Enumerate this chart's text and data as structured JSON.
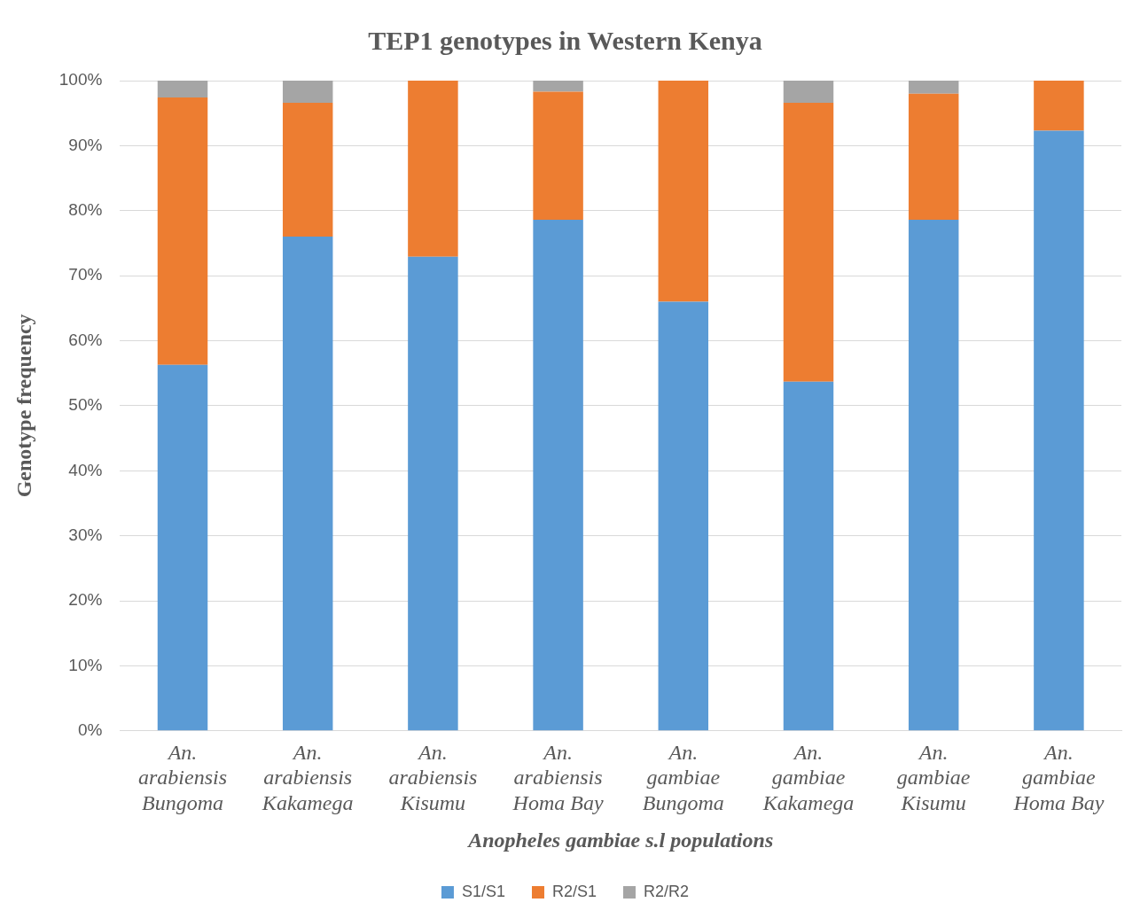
{
  "chart_data": {
    "type": "bar",
    "title": "TEP1 genotypes in Western Kenya",
    "xlabel": "Anopheles gambiae s.l populations",
    "ylabel": "Genotype frequency",
    "categories": [
      "An. arabiensis Bungoma",
      "An. arabiensis Kakamega",
      "An. arabiensis Kisumu",
      "An. arabiensis Homa Bay",
      "An. gambiae Bungoma",
      "An. gambiae Kakamega",
      "An. gambiae Kisumu",
      "An. gambiae Homa Bay"
    ],
    "series": [
      {
        "name": "S1/S1",
        "color": "#5b9bd5",
        "values": [
          56.3,
          76.0,
          72.9,
          78.6,
          66.0,
          53.7,
          78.6,
          92.3
        ]
      },
      {
        "name": "R2/S1",
        "color": "#ed7d31",
        "values": [
          41.1,
          20.6,
          27.1,
          19.7,
          34.0,
          42.9,
          19.4,
          7.7
        ]
      },
      {
        "name": "R2/R2",
        "color": "#a5a5a5",
        "values": [
          2.6,
          3.4,
          0,
          1.7,
          0,
          3.4,
          2.0,
          0
        ]
      }
    ],
    "stacked": true,
    "ylim": [
      0,
      100
    ],
    "yticks": [
      {
        "value": 0,
        "label": "0%"
      },
      {
        "value": 10,
        "label": "10%"
      },
      {
        "value": 20,
        "label": "20%"
      },
      {
        "value": 30,
        "label": "30%"
      },
      {
        "value": 40,
        "label": "40%"
      },
      {
        "value": 50,
        "label": "50%"
      },
      {
        "value": 60,
        "label": "60%"
      },
      {
        "value": 70,
        "label": "70%"
      },
      {
        "value": 80,
        "label": "80%"
      },
      {
        "value": 90,
        "label": "90%"
      },
      {
        "value": 100,
        "label": "100%"
      }
    ],
    "grid": "y",
    "legend": "bottom"
  }
}
